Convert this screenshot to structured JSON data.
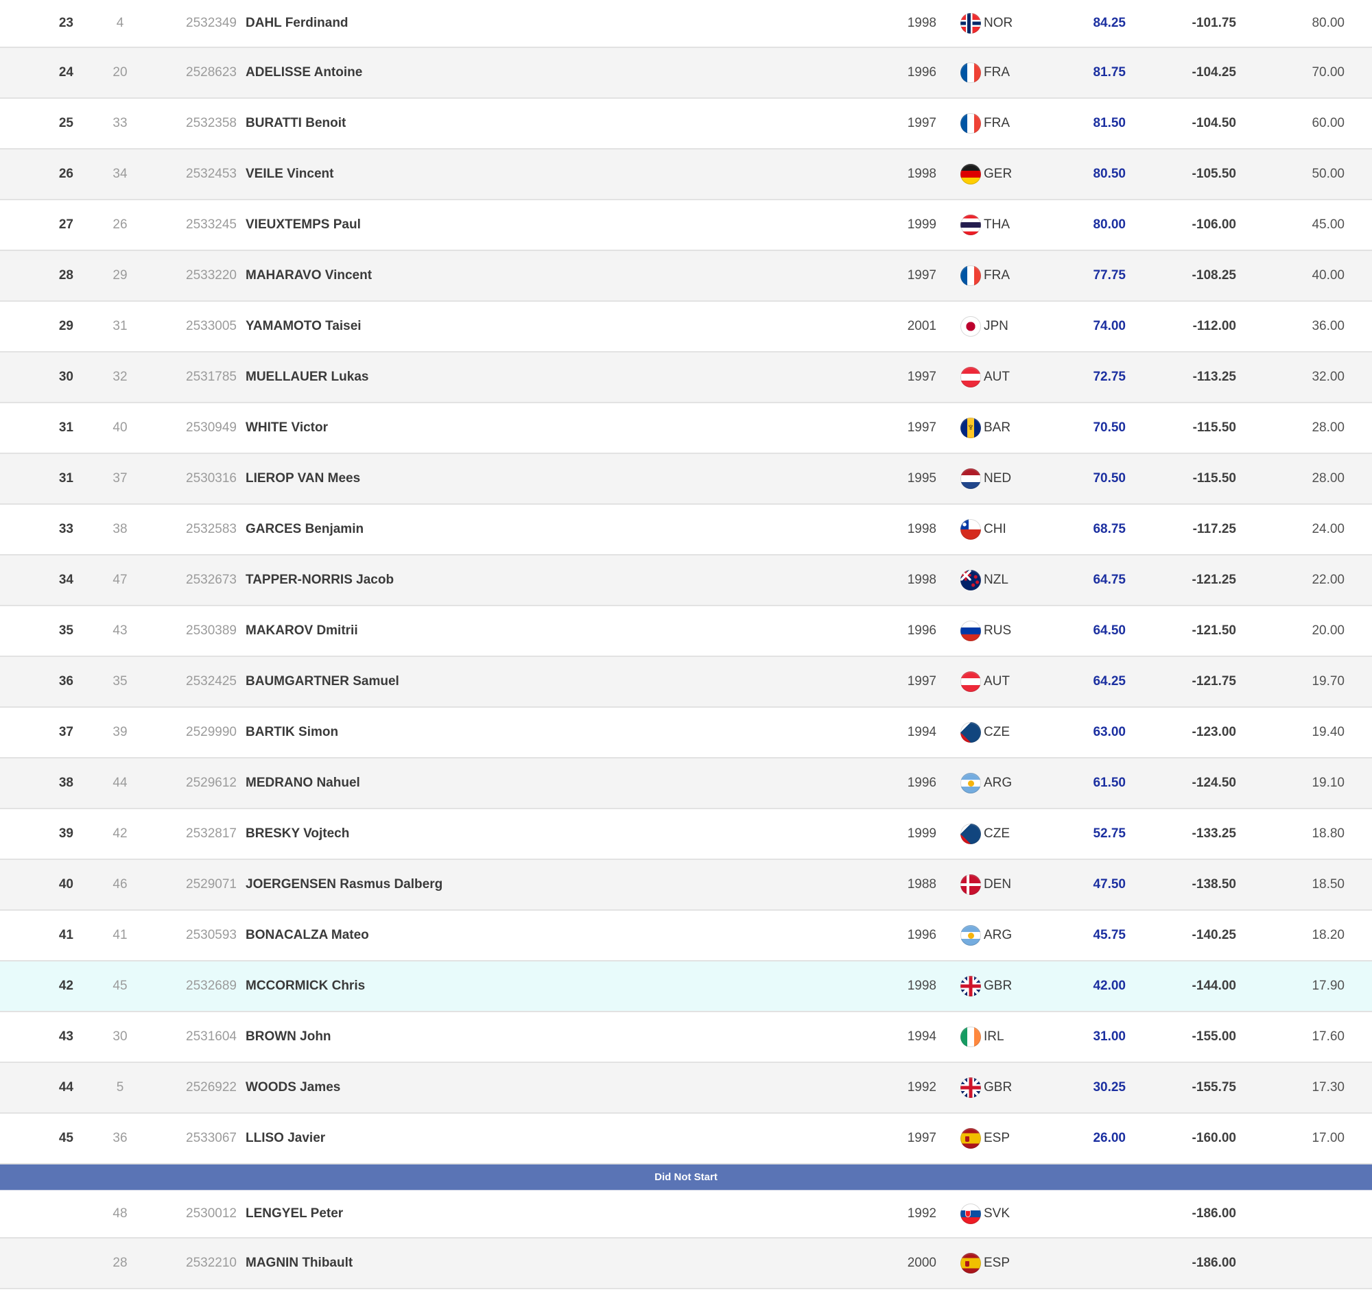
{
  "colors": {
    "accent_blue": "#1b2fa0",
    "dns_bar": "#5a74b5",
    "highlight_row": "#e8fbfb",
    "row_alt": "#f4f4f4"
  },
  "table": {
    "dns_label": "Did Not Start",
    "rows": [
      {
        "rank": "23",
        "bib": "4",
        "code": "2532349",
        "name": "DAHL Ferdinand",
        "year": "1998",
        "noc": "NOR",
        "score": "84.25",
        "diff": "-101.75",
        "points": "80.00",
        "highlighted": false
      },
      {
        "rank": "24",
        "bib": "20",
        "code": "2528623",
        "name": "ADELISSE Antoine",
        "year": "1996",
        "noc": "FRA",
        "score": "81.75",
        "diff": "-104.25",
        "points": "70.00",
        "highlighted": false
      },
      {
        "rank": "25",
        "bib": "33",
        "code": "2532358",
        "name": "BURATTI Benoit",
        "year": "1997",
        "noc": "FRA",
        "score": "81.50",
        "diff": "-104.50",
        "points": "60.00",
        "highlighted": false
      },
      {
        "rank": "26",
        "bib": "34",
        "code": "2532453",
        "name": "VEILE Vincent",
        "year": "1998",
        "noc": "GER",
        "score": "80.50",
        "diff": "-105.50",
        "points": "50.00",
        "highlighted": false
      },
      {
        "rank": "27",
        "bib": "26",
        "code": "2533245",
        "name": "VIEUXTEMPS Paul",
        "year": "1999",
        "noc": "THA",
        "score": "80.00",
        "diff": "-106.00",
        "points": "45.00",
        "highlighted": false
      },
      {
        "rank": "28",
        "bib": "29",
        "code": "2533220",
        "name": "MAHARAVO Vincent",
        "year": "1997",
        "noc": "FRA",
        "score": "77.75",
        "diff": "-108.25",
        "points": "40.00",
        "highlighted": false
      },
      {
        "rank": "29",
        "bib": "31",
        "code": "2533005",
        "name": "YAMAMOTO Taisei",
        "year": "2001",
        "noc": "JPN",
        "score": "74.00",
        "diff": "-112.00",
        "points": "36.00",
        "highlighted": false
      },
      {
        "rank": "30",
        "bib": "32",
        "code": "2531785",
        "name": "MUELLAUER Lukas",
        "year": "1997",
        "noc": "AUT",
        "score": "72.75",
        "diff": "-113.25",
        "points": "32.00",
        "highlighted": false
      },
      {
        "rank": "31",
        "bib": "40",
        "code": "2530949",
        "name": "WHITE Victor",
        "year": "1997",
        "noc": "BAR",
        "score": "70.50",
        "diff": "-115.50",
        "points": "28.00",
        "highlighted": false
      },
      {
        "rank": "31",
        "bib": "37",
        "code": "2530316",
        "name": "LIEROP VAN Mees",
        "year": "1995",
        "noc": "NED",
        "score": "70.50",
        "diff": "-115.50",
        "points": "28.00",
        "highlighted": false
      },
      {
        "rank": "33",
        "bib": "38",
        "code": "2532583",
        "name": "GARCES Benjamin",
        "year": "1998",
        "noc": "CHI",
        "score": "68.75",
        "diff": "-117.25",
        "points": "24.00",
        "highlighted": false
      },
      {
        "rank": "34",
        "bib": "47",
        "code": "2532673",
        "name": "TAPPER-NORRIS Jacob",
        "year": "1998",
        "noc": "NZL",
        "score": "64.75",
        "diff": "-121.25",
        "points": "22.00",
        "highlighted": false
      },
      {
        "rank": "35",
        "bib": "43",
        "code": "2530389",
        "name": "MAKAROV Dmitrii",
        "year": "1996",
        "noc": "RUS",
        "score": "64.50",
        "diff": "-121.50",
        "points": "20.00",
        "highlighted": false
      },
      {
        "rank": "36",
        "bib": "35",
        "code": "2532425",
        "name": "BAUMGARTNER Samuel",
        "year": "1997",
        "noc": "AUT",
        "score": "64.25",
        "diff": "-121.75",
        "points": "19.70",
        "highlighted": false
      },
      {
        "rank": "37",
        "bib": "39",
        "code": "2529990",
        "name": "BARTIK Simon",
        "year": "1994",
        "noc": "CZE",
        "score": "63.00",
        "diff": "-123.00",
        "points": "19.40",
        "highlighted": false
      },
      {
        "rank": "38",
        "bib": "44",
        "code": "2529612",
        "name": "MEDRANO Nahuel",
        "year": "1996",
        "noc": "ARG",
        "score": "61.50",
        "diff": "-124.50",
        "points": "19.10",
        "highlighted": false
      },
      {
        "rank": "39",
        "bib": "42",
        "code": "2532817",
        "name": "BRESKY Vojtech",
        "year": "1999",
        "noc": "CZE",
        "score": "52.75",
        "diff": "-133.25",
        "points": "18.80",
        "highlighted": false
      },
      {
        "rank": "40",
        "bib": "46",
        "code": "2529071",
        "name": "JOERGENSEN Rasmus Dalberg",
        "year": "1988",
        "noc": "DEN",
        "score": "47.50",
        "diff": "-138.50",
        "points": "18.50",
        "highlighted": false
      },
      {
        "rank": "41",
        "bib": "41",
        "code": "2530593",
        "name": "BONACALZA Mateo",
        "year": "1996",
        "noc": "ARG",
        "score": "45.75",
        "diff": "-140.25",
        "points": "18.20",
        "highlighted": false
      },
      {
        "rank": "42",
        "bib": "45",
        "code": "2532689",
        "name": "MCCORMICK Chris",
        "year": "1998",
        "noc": "GBR",
        "score": "42.00",
        "diff": "-144.00",
        "points": "17.90",
        "highlighted": true
      },
      {
        "rank": "43",
        "bib": "30",
        "code": "2531604",
        "name": "BROWN John",
        "year": "1994",
        "noc": "IRL",
        "score": "31.00",
        "diff": "-155.00",
        "points": "17.60",
        "highlighted": false
      },
      {
        "rank": "44",
        "bib": "5",
        "code": "2526922",
        "name": "WOODS James",
        "year": "1992",
        "noc": "GBR",
        "score": "30.25",
        "diff": "-155.75",
        "points": "17.30",
        "highlighted": false
      },
      {
        "rank": "45",
        "bib": "36",
        "code": "2533067",
        "name": "LLISO Javier",
        "year": "1997",
        "noc": "ESP",
        "score": "26.00",
        "diff": "-160.00",
        "points": "17.00",
        "highlighted": false
      }
    ],
    "dns_rows": [
      {
        "rank": "",
        "bib": "48",
        "code": "2530012",
        "name": "LENGYEL Peter",
        "year": "1992",
        "noc": "SVK",
        "score": "",
        "diff": "-186.00",
        "points": ""
      },
      {
        "rank": "",
        "bib": "28",
        "code": "2532210",
        "name": "MAGNIN Thibault",
        "year": "2000",
        "noc": "ESP",
        "score": "",
        "diff": "-186.00",
        "points": ""
      }
    ]
  }
}
